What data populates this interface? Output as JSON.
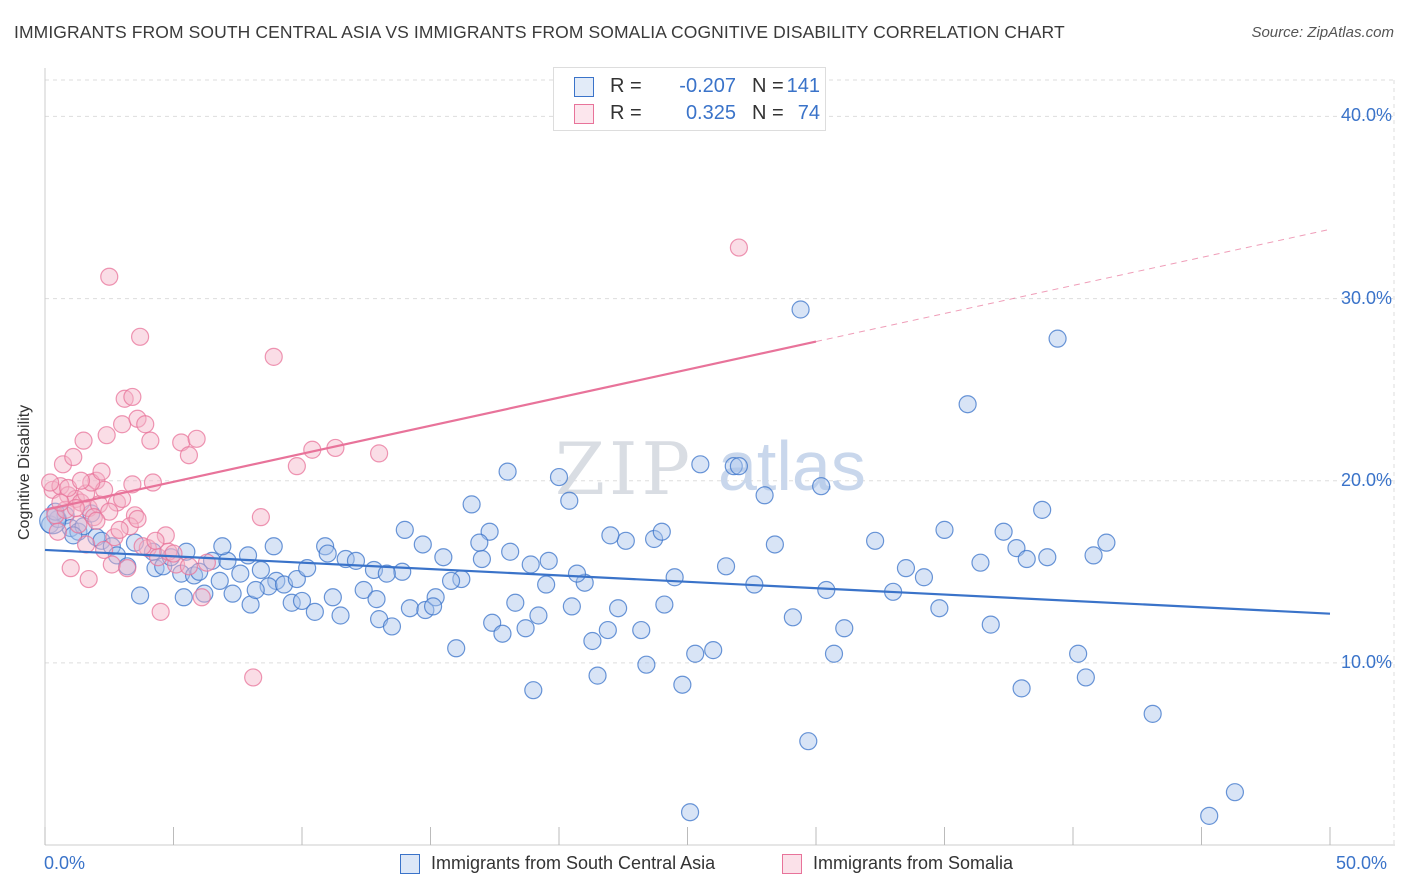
{
  "title": "IMMIGRANTS FROM SOUTH CENTRAL ASIA VS IMMIGRANTS FROM SOMALIA COGNITIVE DISABILITY CORRELATION CHART",
  "source": "Source: ZipAtlas.com",
  "watermark": {
    "zip": "ZIP",
    "atlas": "atlas"
  },
  "legend_top": {
    "rows": [
      {
        "r_label": "R =",
        "r_value": "-0.207",
        "n_label": "N =",
        "n_value": "141"
      },
      {
        "r_label": "R =",
        "r_value": "0.325",
        "n_label": "N =",
        "n_value": "74"
      }
    ]
  },
  "colors": {
    "blue": "#3a73c9",
    "blue_fill": "#a8c4ea",
    "pink": "#e8739a",
    "pink_fill": "#f5b4c8",
    "grid": "#dddddd",
    "tick_label": "#3a73c9"
  },
  "chart_data": {
    "type": "scatter",
    "title": "IMMIGRANTS FROM SOUTH CENTRAL ASIA VS IMMIGRANTS FROM SOMALIA COGNITIVE DISABILITY CORRELATION CHART",
    "xlabel": "",
    "ylabel": "Cognitive Disability",
    "xlim": [
      0,
      50
    ],
    "ylim": [
      0,
      42
    ],
    "x_tick_labels": [
      "0.0%",
      "50.0%"
    ],
    "y_ticks": [
      10,
      20,
      30,
      40
    ],
    "y_tick_labels": [
      "10.0%",
      "20.0%",
      "30.0%",
      "40.0%"
    ],
    "grid": true,
    "legend_position": "bottom-center",
    "series": [
      {
        "name": "Immigrants from South Central Asia",
        "color": "#3a73c9",
        "trend": {
          "x": [
            0,
            50
          ],
          "y": [
            16.2,
            12.7
          ],
          "dashed_from": null
        },
        "points": [
          [
            0.2,
            17.6
          ],
          [
            0.5,
            17.9
          ],
          [
            0.8,
            18.1
          ],
          [
            1.0,
            17.4
          ],
          [
            1.3,
            17.2
          ],
          [
            1.5,
            17.5
          ],
          [
            1.8,
            18.2
          ],
          [
            2.0,
            16.9
          ],
          [
            2.2,
            16.7
          ],
          [
            2.6,
            16.4
          ],
          [
            0.4,
            18.3
          ],
          [
            1.1,
            17.0
          ],
          [
            2.8,
            15.9
          ],
          [
            3.2,
            15.3
          ],
          [
            4.3,
            15.2
          ],
          [
            4.6,
            15.3
          ],
          [
            5.3,
            14.9
          ],
          [
            5.8,
            14.8
          ],
          [
            6.5,
            15.6
          ],
          [
            7.1,
            15.6
          ],
          [
            3.5,
            16.6
          ],
          [
            4.2,
            16.1
          ],
          [
            5.5,
            16.1
          ],
          [
            6.0,
            15.0
          ],
          [
            6.8,
            14.5
          ],
          [
            7.3,
            13.8
          ],
          [
            8.0,
            13.2
          ],
          [
            8.4,
            15.1
          ],
          [
            9.0,
            14.5
          ],
          [
            9.6,
            13.3
          ],
          [
            3.7,
            13.7
          ],
          [
            5.4,
            13.6
          ],
          [
            6.2,
            13.8
          ],
          [
            7.6,
            14.9
          ],
          [
            8.7,
            14.2
          ],
          [
            9.3,
            14.3
          ],
          [
            10.0,
            13.4
          ],
          [
            10.5,
            12.8
          ],
          [
            11.2,
            13.6
          ],
          [
            11.5,
            12.6
          ],
          [
            7.9,
            15.9
          ],
          [
            8.9,
            16.4
          ],
          [
            10.9,
            16.4
          ],
          [
            11.7,
            15.7
          ],
          [
            12.4,
            14.0
          ],
          [
            13.0,
            12.4
          ],
          [
            13.5,
            12.0
          ],
          [
            14.2,
            13.0
          ],
          [
            14.8,
            12.9
          ],
          [
            15.2,
            13.6
          ],
          [
            11.0,
            16.0
          ],
          [
            12.8,
            15.1
          ],
          [
            13.9,
            15.0
          ],
          [
            14.7,
            16.5
          ],
          [
            15.5,
            15.8
          ],
          [
            16.2,
            14.6
          ],
          [
            17.4,
            12.2
          ],
          [
            17.8,
            11.6
          ],
          [
            18.3,
            13.3
          ],
          [
            19.5,
            14.3
          ],
          [
            15.1,
            13.1
          ],
          [
            16.0,
            10.8
          ],
          [
            18.7,
            11.9
          ],
          [
            19.0,
            8.5
          ],
          [
            20.5,
            13.1
          ],
          [
            21.5,
            9.3
          ],
          [
            21.9,
            11.8
          ],
          [
            23.2,
            11.8
          ],
          [
            24.1,
            13.2
          ],
          [
            24.8,
            8.8
          ],
          [
            16.6,
            18.7
          ],
          [
            17.3,
            17.2
          ],
          [
            18.1,
            16.1
          ],
          [
            18.9,
            15.4
          ],
          [
            19.6,
            15.6
          ],
          [
            21.0,
            14.4
          ],
          [
            22.6,
            16.7
          ],
          [
            23.7,
            16.8
          ],
          [
            25.3,
            10.5
          ],
          [
            26.0,
            10.7
          ],
          [
            14.0,
            17.3
          ],
          [
            18.0,
            20.5
          ],
          [
            20.0,
            20.2
          ],
          [
            20.4,
            18.9
          ],
          [
            22.0,
            17.0
          ],
          [
            24.0,
            17.2
          ],
          [
            24.5,
            14.7
          ],
          [
            25.5,
            20.9
          ],
          [
            26.8,
            20.8
          ],
          [
            28.0,
            19.2
          ],
          [
            28.4,
            16.5
          ],
          [
            29.1,
            12.5
          ],
          [
            29.7,
            5.7
          ],
          [
            30.2,
            19.7
          ],
          [
            30.4,
            14.0
          ],
          [
            30.7,
            10.5
          ],
          [
            32.3,
            16.7
          ],
          [
            33.0,
            13.9
          ],
          [
            33.5,
            15.2
          ],
          [
            35.0,
            17.3
          ],
          [
            34.8,
            13.0
          ],
          [
            35.9,
            24.2
          ],
          [
            36.4,
            15.5
          ],
          [
            37.8,
            16.3
          ],
          [
            38.2,
            15.7
          ],
          [
            38.8,
            18.4
          ],
          [
            39.0,
            15.8
          ],
          [
            39.4,
            27.8
          ],
          [
            40.2,
            10.5
          ],
          [
            40.8,
            15.9
          ],
          [
            37.3,
            17.2
          ],
          [
            38.0,
            8.6
          ],
          [
            40.5,
            9.2
          ],
          [
            41.3,
            16.6
          ],
          [
            43.1,
            7.2
          ],
          [
            45.3,
            1.6
          ],
          [
            46.3,
            2.9
          ],
          [
            29.4,
            29.4
          ],
          [
            25.1,
            1.8
          ],
          [
            27.0,
            20.8
          ],
          [
            8.2,
            14.0
          ],
          [
            9.8,
            14.6
          ],
          [
            12.1,
            15.6
          ],
          [
            13.3,
            14.9
          ],
          [
            15.8,
            14.5
          ],
          [
            17.0,
            15.7
          ],
          [
            20.7,
            14.9
          ],
          [
            22.3,
            13.0
          ],
          [
            23.4,
            9.9
          ],
          [
            26.5,
            15.3
          ],
          [
            6.9,
            16.4
          ],
          [
            10.2,
            15.2
          ],
          [
            12.9,
            13.5
          ],
          [
            16.9,
            16.6
          ],
          [
            19.2,
            12.6
          ],
          [
            21.3,
            11.2
          ],
          [
            27.6,
            14.3
          ],
          [
            31.1,
            11.9
          ],
          [
            34.2,
            14.7
          ],
          [
            36.8,
            12.1
          ],
          [
            4.9,
            15.8
          ]
        ]
      },
      {
        "name": "Immigrants from Somalia",
        "color": "#e8739a",
        "trend": {
          "x": [
            0,
            50
          ],
          "y": [
            18.4,
            33.8
          ],
          "dashed_from": 30
        },
        "points": [
          [
            0.3,
            19.5
          ],
          [
            0.6,
            19.7
          ],
          [
            0.9,
            19.2
          ],
          [
            1.2,
            19.0
          ],
          [
            1.4,
            18.8
          ],
          [
            1.7,
            18.5
          ],
          [
            2.1,
            18.7
          ],
          [
            0.4,
            18.1
          ],
          [
            0.8,
            18.4
          ],
          [
            1.6,
            19.3
          ],
          [
            0.7,
            20.9
          ],
          [
            1.1,
            21.3
          ],
          [
            1.5,
            22.2
          ],
          [
            2.4,
            22.5
          ],
          [
            1.0,
            15.2
          ],
          [
            1.7,
            14.6
          ],
          [
            2.6,
            15.4
          ],
          [
            2.5,
            31.2
          ],
          [
            3.7,
            27.9
          ],
          [
            3.1,
            24.5
          ],
          [
            3.4,
            24.6
          ],
          [
            3.0,
            23.1
          ],
          [
            3.6,
            23.4
          ],
          [
            3.9,
            23.1
          ],
          [
            4.1,
            22.2
          ],
          [
            5.3,
            22.1
          ],
          [
            5.6,
            21.4
          ],
          [
            5.9,
            22.3
          ],
          [
            8.9,
            26.8
          ],
          [
            9.8,
            20.8
          ],
          [
            10.4,
            21.7
          ],
          [
            11.3,
            21.8
          ],
          [
            13.0,
            21.5
          ],
          [
            8.4,
            18.0
          ],
          [
            4.2,
            19.9
          ],
          [
            4.7,
            17.0
          ],
          [
            3.5,
            18.1
          ],
          [
            4.0,
            16.3
          ],
          [
            3.2,
            15.2
          ],
          [
            4.5,
            12.8
          ],
          [
            6.1,
            13.6
          ],
          [
            8.1,
            9.2
          ],
          [
            27.0,
            32.8
          ],
          [
            2.0,
            20.0
          ],
          [
            2.3,
            19.5
          ],
          [
            2.8,
            18.8
          ],
          [
            3.3,
            17.5
          ],
          [
            1.3,
            17.6
          ],
          [
            0.5,
            17.2
          ],
          [
            1.9,
            18.0
          ],
          [
            2.7,
            16.9
          ],
          [
            3.8,
            16.4
          ],
          [
            4.4,
            15.8
          ],
          [
            5.1,
            15.4
          ],
          [
            5.6,
            15.3
          ],
          [
            6.3,
            15.5
          ],
          [
            1.8,
            19.9
          ],
          [
            2.2,
            20.5
          ],
          [
            3.0,
            19.0
          ],
          [
            0.2,
            19.9
          ],
          [
            0.9,
            19.6
          ],
          [
            1.4,
            20.0
          ],
          [
            2.5,
            18.3
          ],
          [
            3.4,
            19.8
          ],
          [
            4.8,
            16.1
          ],
          [
            2.9,
            17.3
          ],
          [
            4.3,
            16.7
          ],
          [
            1.6,
            16.5
          ],
          [
            0.6,
            18.8
          ],
          [
            1.2,
            18.5
          ],
          [
            2.0,
            17.8
          ],
          [
            3.6,
            17.9
          ],
          [
            2.3,
            16.2
          ],
          [
            5.0,
            16.0
          ]
        ]
      }
    ]
  },
  "legend_bottom": [
    {
      "label": "Immigrants from South Central Asia"
    },
    {
      "label": "Immigrants from Somalia"
    }
  ]
}
